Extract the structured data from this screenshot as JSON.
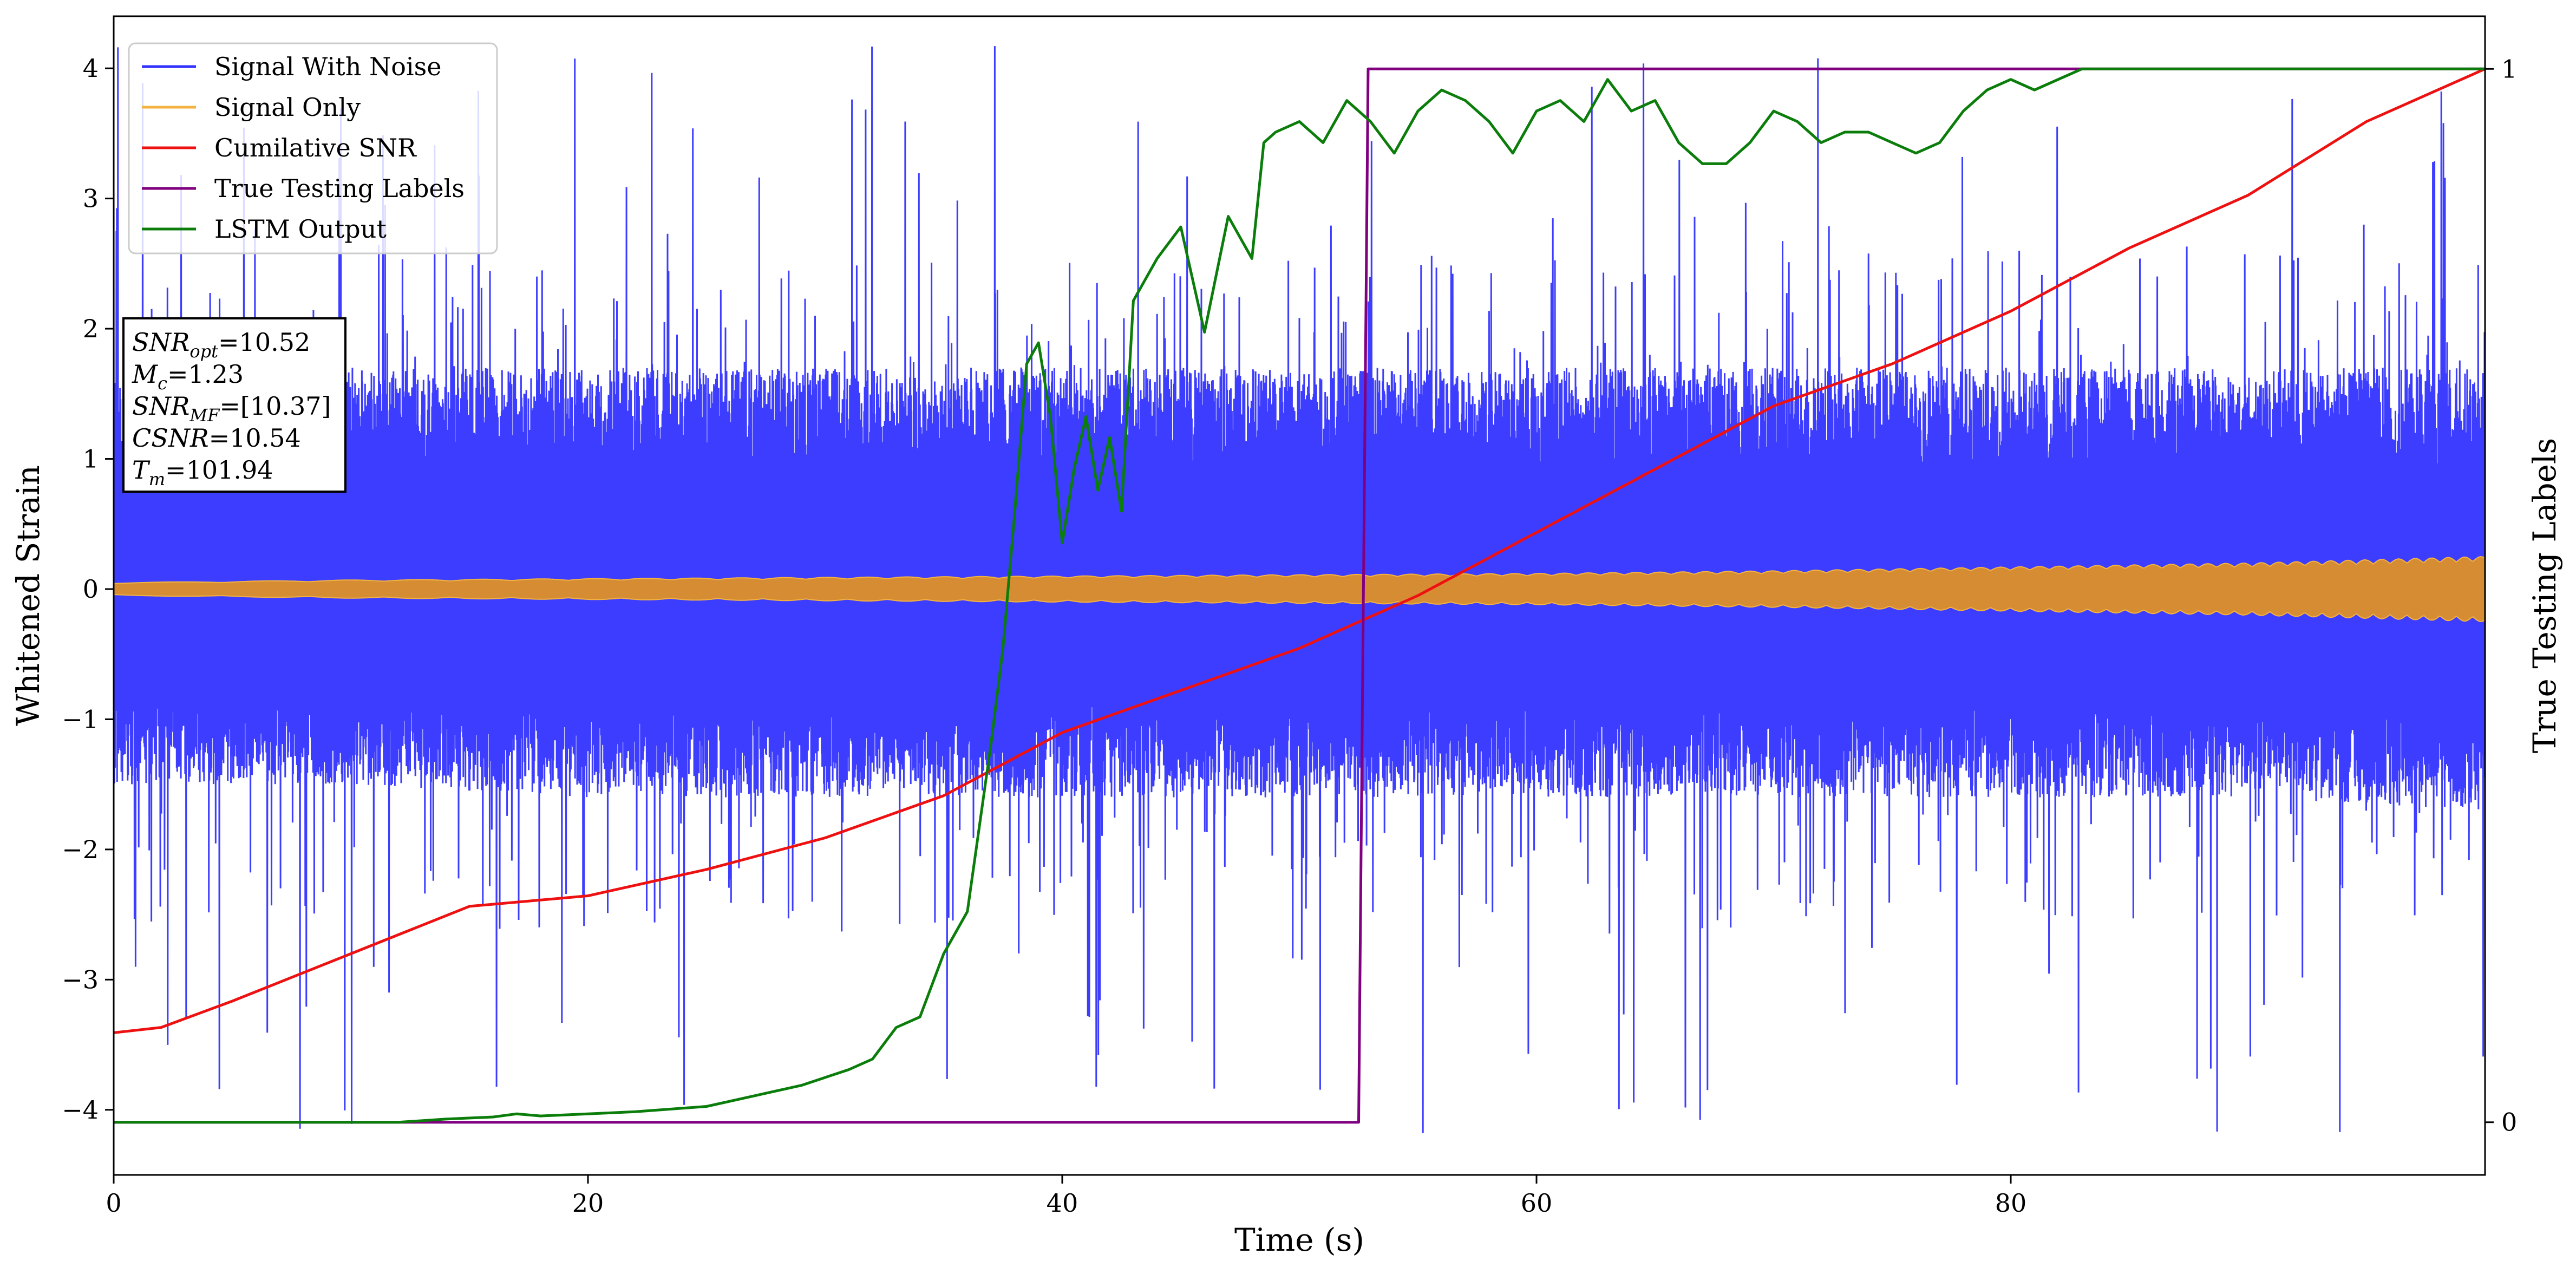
{
  "chart_data": {
    "type": "line",
    "xlabel": "Time (s)",
    "ylabel_left": "Whitened Strain",
    "ylabel_right": "True Testing Labels",
    "xlim": [
      0,
      100
    ],
    "ylim_left": [
      -4.5,
      4.4
    ],
    "ylim_right": [
      -0.05,
      1.05
    ],
    "x_ticks": [
      0,
      20,
      40,
      60,
      80
    ],
    "y_ticks_left": [
      -4,
      -3,
      -2,
      -1,
      0,
      1,
      2,
      3,
      4
    ],
    "y_tick_labels_left": [
      "−4",
      "−3",
      "−2",
      "−1",
      "0",
      "1",
      "2",
      "3",
      "4"
    ],
    "y_ticks_right": [
      0,
      1
    ],
    "y_tick_labels_right": [
      "0",
      "1"
    ],
    "grid": false,
    "legend_position": "top-left",
    "legend": [
      {
        "label": "Signal With Noise",
        "color": "#3333ff"
      },
      {
        "label": "Signal Only",
        "color": "#f4b33f"
      },
      {
        "label": "Cumilative SNR",
        "color": "#ee1111"
      },
      {
        "label": "True Testing Labels",
        "color": "#800080"
      },
      {
        "label": "LSTM Output",
        "color": "#0a7d0a"
      }
    ],
    "annotation": [
      {
        "base": "SNR",
        "sub": "opt",
        "value": "=10.52"
      },
      {
        "base": "M",
        "sub": "c",
        "value": "=1.23"
      },
      {
        "base": "SNR",
        "sub": "MF",
        "value": "=[10.37]"
      },
      {
        "base": "CSNR",
        "sub": "",
        "value": "=10.54"
      },
      {
        "base": "T",
        "sub": "m",
        "value": "=101.94"
      }
    ],
    "series": [
      {
        "name": "Signal With Noise",
        "axis": "left",
        "style": "noise-band",
        "color": "#3333ff",
        "x": [
          0,
          10,
          20,
          30,
          40,
          50,
          60,
          70,
          80,
          90,
          100
        ],
        "upper_typical": [
          1.6,
          1.7,
          1.7,
          1.7,
          1.7,
          1.7,
          1.7,
          1.7,
          1.7,
          1.7,
          1.7
        ],
        "lower_typical": [
          -1.5,
          -1.5,
          -1.6,
          -1.6,
          -1.6,
          -1.6,
          -1.6,
          -1.6,
          -1.6,
          -1.6,
          -1.7
        ],
        "max_spike": 4.2,
        "min_spike": -4.1
      },
      {
        "name": "Signal Only",
        "axis": "left",
        "style": "envelope",
        "color": "#f4b33f",
        "x": [
          0,
          10,
          20,
          30,
          40,
          50,
          60,
          70,
          80,
          90,
          100
        ],
        "amplitude": [
          0.05,
          0.07,
          0.08,
          0.09,
          0.1,
          0.11,
          0.12,
          0.14,
          0.17,
          0.2,
          0.25
        ]
      },
      {
        "name": "Cumilative SNR",
        "axis": "right",
        "color": "#ee1111",
        "x": [
          0,
          2,
          5,
          10,
          15,
          20,
          25,
          30,
          35,
          40,
          45,
          50,
          55,
          60,
          65,
          70,
          75,
          80,
          85,
          90,
          95,
          100
        ],
        "y": [
          0.085,
          0.09,
          0.115,
          0.16,
          0.205,
          0.215,
          0.24,
          0.27,
          0.31,
          0.37,
          0.41,
          0.45,
          0.5,
          0.56,
          0.62,
          0.68,
          0.72,
          0.77,
          0.83,
          0.88,
          0.95,
          1.0
        ]
      },
      {
        "name": "True Testing Labels",
        "axis": "right",
        "color": "#800080",
        "x": [
          0,
          52.5,
          52.9,
          100
        ],
        "y": [
          0,
          0,
          1,
          1
        ]
      },
      {
        "name": "LSTM Output",
        "axis": "right",
        "color": "#0a7d0a",
        "x": [
          0,
          12,
          14,
          16,
          17,
          18,
          20,
          22,
          25,
          27,
          29,
          31,
          32,
          33,
          34,
          35,
          36,
          37,
          37.5,
          38,
          38.5,
          39,
          39.5,
          40,
          40.5,
          41,
          41.5,
          42,
          42.5,
          43,
          44,
          45,
          46,
          47,
          48,
          48.5,
          49,
          50,
          51,
          52,
          53,
          54,
          55,
          56,
          57,
          58,
          59,
          60,
          61,
          62,
          63,
          64,
          65,
          66,
          67,
          68,
          69,
          70,
          71,
          72,
          73,
          74,
          75,
          76,
          77,
          78,
          79,
          80,
          81,
          82,
          83,
          84,
          86,
          100
        ],
        "y": [
          0,
          0,
          0.003,
          0.005,
          0.008,
          0.006,
          0.008,
          0.01,
          0.015,
          0.025,
          0.035,
          0.05,
          0.06,
          0.09,
          0.1,
          0.16,
          0.2,
          0.36,
          0.45,
          0.58,
          0.72,
          0.74,
          0.67,
          0.55,
          0.62,
          0.67,
          0.6,
          0.65,
          0.58,
          0.78,
          0.82,
          0.85,
          0.75,
          0.86,
          0.82,
          0.93,
          0.94,
          0.95,
          0.93,
          0.97,
          0.95,
          0.92,
          0.96,
          0.98,
          0.97,
          0.95,
          0.92,
          0.96,
          0.97,
          0.95,
          0.99,
          0.96,
          0.97,
          0.93,
          0.91,
          0.91,
          0.93,
          0.96,
          0.95,
          0.93,
          0.94,
          0.94,
          0.93,
          0.92,
          0.93,
          0.96,
          0.98,
          0.99,
          0.98,
          0.99,
          1.0,
          1.0,
          1.0,
          1.0
        ]
      }
    ]
  }
}
